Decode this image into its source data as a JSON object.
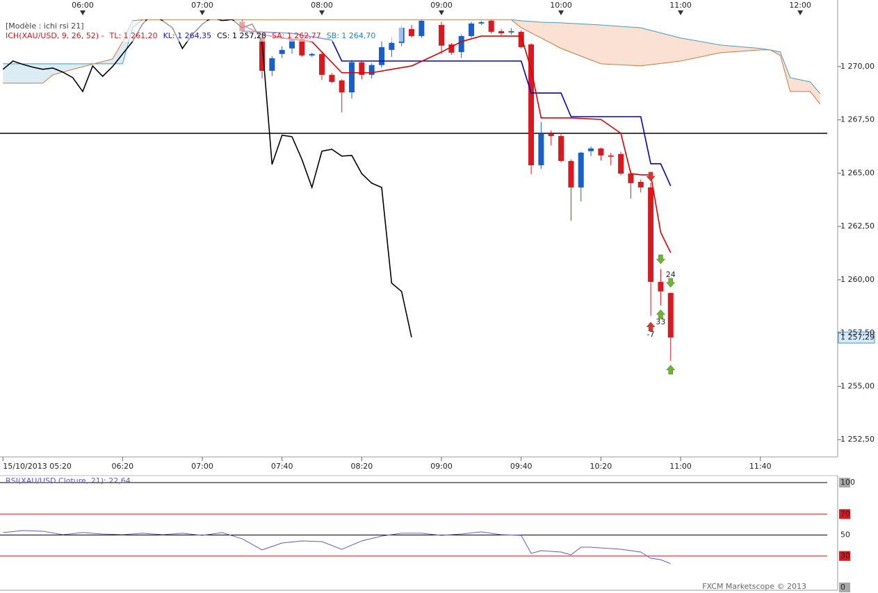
{
  "chart_data": [
    {
      "type": "candlestick",
      "legend": {
        "model": "[Modèle : ichi rsi 21]",
        "items": [
          {
            "text": "ICH(XAU/USD, 9, 26, 52) -",
            "color": "#d71920"
          },
          {
            "text": "TL: 1 261,20",
            "color": "#d71920"
          },
          {
            "text": "KL: 1 264,35",
            "color": "#1414c8"
          },
          {
            "text": "CS: 1 257,28",
            "color": "#000000"
          },
          {
            "text": "SA: 1 262,77",
            "color": "#d71920"
          },
          {
            "text": "SB: 1 264,70",
            "color": "#1e88b4"
          }
        ]
      },
      "xlim": [
        318.5,
        738.8
      ],
      "x2ticks": [
        {
          "value": 360,
          "label": "06:00"
        },
        {
          "value": 420,
          "label": "07:00"
        },
        {
          "value": 480,
          "label": "08:00"
        },
        {
          "value": 540,
          "label": "09:00"
        },
        {
          "value": 600,
          "label": "10:00"
        },
        {
          "value": 660,
          "label": "11:00"
        },
        {
          "value": 720,
          "label": "12:00"
        }
      ],
      "xticks": [
        {
          "value": 320,
          "label": "15/10/2013 05:20"
        },
        {
          "value": 380,
          "label": "06:20"
        },
        {
          "value": 420,
          "label": "07:00"
        },
        {
          "value": 460,
          "label": "07:40"
        },
        {
          "value": 500,
          "label": "08:20"
        },
        {
          "value": 540,
          "label": "09:00"
        },
        {
          "value": 580,
          "label": "09:40"
        },
        {
          "value": 620,
          "label": "10:20"
        },
        {
          "value": 660,
          "label": "11:00"
        },
        {
          "value": 700,
          "label": "11:40"
        }
      ],
      "ylim": [
        1251.69,
        1272.21
      ],
      "yticks": [
        {
          "value": 1252.5,
          "label": "1 252,50"
        },
        {
          "value": 1255,
          "label": "1 255,00"
        },
        {
          "value": 1257.5,
          "label": "1 257,50"
        },
        {
          "value": 1260,
          "label": "1 260,00"
        },
        {
          "value": 1262.5,
          "label": "1 262,50"
        },
        {
          "value": 1265,
          "label": "1 265,00"
        },
        {
          "value": 1267.5,
          "label": "1 267,50"
        },
        {
          "value": 1270,
          "label": "1 270,00"
        }
      ],
      "up_color": "#1a5fc4",
      "down_color": "#d71920",
      "candles": {
        "x": [
          440,
          450,
          455,
          460,
          465,
          470,
          475,
          480,
          485,
          490,
          495,
          500,
          505,
          510,
          515,
          520,
          525,
          530,
          540,
          545,
          550,
          555,
          560,
          565,
          570,
          575,
          580,
          585,
          590,
          595,
          600,
          605,
          610,
          615,
          620,
          625,
          630,
          635,
          640,
          645,
          650,
          655
        ],
        "open": [
          1272.1,
          1271.34,
          1269.8,
          1270.59,
          1270.85,
          1271.3,
          1270.52,
          1270.59,
          1269.61,
          1269.35,
          1268.79,
          1270.2,
          1269.61,
          1270.07,
          1270.78,
          1271.11,
          1271.76,
          1271.43,
          1271.95,
          1271.04,
          1270.68,
          1271.43,
          1272.02,
          1272.15,
          1271.66,
          1271.6,
          1271.63,
          1271.04,
          1265.37,
          1266.84,
          1266.74,
          1265.57,
          1264.33,
          1266.03,
          1266.16,
          1265.83,
          1265.9,
          1264.98,
          1264.59,
          1264.33,
          1259.9,
          1259.38
        ],
        "high": [
          1272.2,
          1271.5,
          1270.5,
          1270.95,
          1271.4,
          1271.4,
          1270.65,
          1270.7,
          1269.7,
          1269.4,
          1270.3,
          1270.25,
          1270.15,
          1271.2,
          1271.4,
          1271.95,
          1271.95,
          1272.2,
          1272.1,
          1271.1,
          1271.5,
          1272.1,
          1272.15,
          1272.2,
          1271.75,
          1271.8,
          1271.7,
          1271.1,
          1267.4,
          1267.0,
          1266.9,
          1265.65,
          1266.0,
          1266.25,
          1266.2,
          1265.95,
          1266.0,
          1265.1,
          1264.7,
          1264.56,
          1260.5,
          1259.4
        ],
        "low": [
          1271.55,
          1269.45,
          1269.55,
          1270.4,
          1270.6,
          1270.45,
          1270.45,
          1269.38,
          1269.2,
          1267.85,
          1268.5,
          1269.4,
          1269.45,
          1269.95,
          1270.45,
          1270.95,
          1271.35,
          1271.35,
          1270.6,
          1270.55,
          1270.4,
          1271.35,
          1271.95,
          1271.55,
          1271.45,
          1271.5,
          1270.85,
          1264.95,
          1265.2,
          1266.3,
          1265.5,
          1262.77,
          1263.68,
          1265.8,
          1265.6,
          1265.37,
          1264.9,
          1263.81,
          1264.1,
          1258.31,
          1258.79,
          1256.19
        ],
        "close": [
          1271.66,
          1269.8,
          1270.39,
          1270.78,
          1271.3,
          1270.52,
          1270.59,
          1269.61,
          1269.28,
          1268.79,
          1270.2,
          1269.61,
          1270.07,
          1270.91,
          1271.11,
          1271.82,
          1271.43,
          1272.15,
          1270.98,
          1270.65,
          1271.43,
          1272.02,
          1272.08,
          1271.63,
          1271.56,
          1271.66,
          1270.91,
          1265.37,
          1266.84,
          1266.74,
          1265.57,
          1264.33,
          1265.96,
          1266.16,
          1265.83,
          1265.77,
          1264.98,
          1264.53,
          1264.33,
          1259.9,
          1259.45,
          1257.29
        ]
      },
      "cloud": {
        "x": [
          320,
          340,
          345,
          355,
          375,
          380,
          385,
          390,
          575,
          580,
          590,
          600,
          620,
          640,
          660,
          680,
          700,
          705,
          710,
          715,
          725,
          730
        ],
        "span_a": [
          1270.13,
          1270.13,
          1270.13,
          1270.13,
          1270.13,
          1270.13,
          1271.82,
          1272.2,
          1272.2,
          1272.15,
          1272.08,
          1272.05,
          1271.95,
          1271.82,
          1271.34,
          1271.01,
          1270.85,
          1270.78,
          1270.68,
          1269.48,
          1269.28,
          1268.73
        ],
        "span_b": [
          1269.22,
          1269.22,
          1269.61,
          1269.87,
          1270.36,
          1271.17,
          1272.15,
          1272.2,
          1272.2,
          1271.82,
          1271.34,
          1270.85,
          1270.13,
          1270.03,
          1270.26,
          1270.65,
          1270.78,
          1270.78,
          1270.52,
          1268.83,
          1268.83,
          1268.24
        ],
        "span_a_color": "#3aa0c0",
        "span_b_color": "#d0783c",
        "fill_colors": [
          "#dcecf5",
          "#dcecf5",
          "#dcecf5",
          "#dcecf5",
          "#dcecf5",
          "#dcecf5",
          "#dcecf5",
          "#fbe1d3",
          "#fbe1d3",
          "#fbe1d3",
          "#fbe1d3",
          "#fbe1d3",
          "#fbe1d3",
          "#fbe1d3",
          "#fbe1d3",
          "#fbe1d3",
          "#fbe1d3",
          "#fbe1d3",
          "#fbe1d3",
          "#fbe1d3",
          "#fbe1d3",
          "#fbe1d3"
        ]
      },
      "hline": 1266.87,
      "lines": [
        {
          "color": "#0000c8",
          "x": [
            440,
            465,
            485,
            490,
            565,
            580,
            585,
            600,
            605,
            640,
            645,
            650,
            655
          ],
          "values": [
            1271.66,
            1271.56,
            1271.24,
            1270.26,
            1270.26,
            1270.26,
            1268.76,
            1268.76,
            1267.65,
            1267.65,
            1265.44,
            1265.44,
            1264.4
          ]
        },
        {
          "color": "#e00000",
          "x": [
            440,
            450,
            460,
            475,
            480,
            490,
            505,
            515,
            525,
            540,
            550,
            560,
            580,
            585,
            590,
            605,
            620,
            630,
            635,
            640,
            645,
            650,
            655
          ],
          "values": [
            1271.95,
            1271.5,
            1271.34,
            1271.17,
            1270.68,
            1269.71,
            1269.71,
            1269.87,
            1270.03,
            1270.68,
            1271.17,
            1271.43,
            1271.43,
            1269.87,
            1267.59,
            1267.59,
            1267.52,
            1266.87,
            1264.98,
            1264.92,
            1264.92,
            1262.22,
            1261.27
          ]
        },
        {
          "color": "#000000",
          "x": [
            320,
            325,
            330,
            335,
            340,
            345,
            350,
            355,
            360,
            365,
            370,
            375,
            380,
            385,
            390,
            395,
            400,
            405,
            410,
            415,
            420,
            425,
            430,
            435,
            440,
            445,
            450,
            455,
            460,
            465,
            470,
            475,
            480,
            485,
            490,
            495,
            500,
            505,
            510,
            515,
            520,
            525
          ],
          "values": [
            1269.87,
            1270.26,
            1270.1,
            1269.97,
            1269.87,
            1269.93,
            1269.74,
            1269.48,
            1268.83,
            1270.03,
            1269.54,
            1270.0,
            1270.59,
            1271.17,
            1271.99,
            1272.48,
            1272.15,
            1271.82,
            1270.85,
            1271.5,
            1271.99,
            1272.31,
            1272.15,
            1272.21,
            1271.82,
            1271.99,
            1271.17,
            1265.41,
            1266.78,
            1266.71,
            1265.64,
            1264.33,
            1266.03,
            1266.12,
            1265.8,
            1265.83,
            1264.98,
            1264.53,
            1264.33,
            1259.84,
            1259.45,
            1257.3
          ]
        }
      ],
      "signals": [
        {
          "x": 645,
          "y": 1264.82,
          "direction": "down",
          "color": "#e0342a"
        },
        {
          "x": 650,
          "y": 1260.94,
          "direction": "down",
          "color": "#6ab82a"
        },
        {
          "x": 655,
          "y": 1259.84,
          "direction": "down",
          "color": "#6ab82a",
          "label": "24"
        },
        {
          "x": 650,
          "y": 1258.4,
          "direction": "up",
          "color": "#6ab82a",
          "label": "33"
        },
        {
          "x": 645,
          "y": 1257.82,
          "direction": "up",
          "color": "#e0342a",
          "label": "-7"
        },
        {
          "x": 655,
          "y": 1255.8,
          "direction": "up",
          "color": "#6ab82a"
        }
      ],
      "last_price": 1257.29,
      "last_price_label": "1 257,29"
    },
    {
      "type": "line",
      "title": "RSI(XAU/USD.Cloture, 21): 22,64",
      "color": "#5a5ad6",
      "xlim": [
        318.5,
        738.8
      ],
      "ylim": [
        0,
        100
      ],
      "yticks": [
        100,
        70,
        50,
        30,
        0
      ],
      "grid_colors": [
        "#000000",
        "#d71920",
        "#000000",
        "#d71920",
        null
      ],
      "label_backgrounds": [
        "#a8a8a8",
        "#d71920",
        "#ffffff",
        "#d71920",
        "#a8a8a8"
      ],
      "x": [
        320,
        330,
        340,
        350,
        360,
        370,
        380,
        390,
        400,
        410,
        420,
        430,
        440,
        450,
        460,
        470,
        480,
        490,
        500,
        510,
        520,
        530,
        540,
        550,
        560,
        570,
        580,
        585,
        590,
        595,
        600,
        605,
        610,
        615,
        620,
        625,
        630,
        635,
        640,
        645,
        650,
        655
      ],
      "values": [
        52.3,
        54.3,
        53.6,
        50.3,
        52.3,
        51.0,
        50.3,
        51.7,
        50.3,
        51.7,
        49.7,
        52.3,
        46.4,
        35.8,
        42.4,
        44.4,
        43.7,
        36.4,
        44.4,
        49.0,
        51.7,
        51.7,
        49.7,
        51.0,
        53.0,
        50.3,
        49.7,
        32.5,
        35.1,
        34.4,
        33.8,
        31.1,
        38.4,
        38.4,
        37.7,
        37.1,
        36.4,
        35.1,
        33.8,
        27.8,
        26.5,
        22.64
      ]
    }
  ],
  "footer": "FXCM Marketscope © 2013"
}
